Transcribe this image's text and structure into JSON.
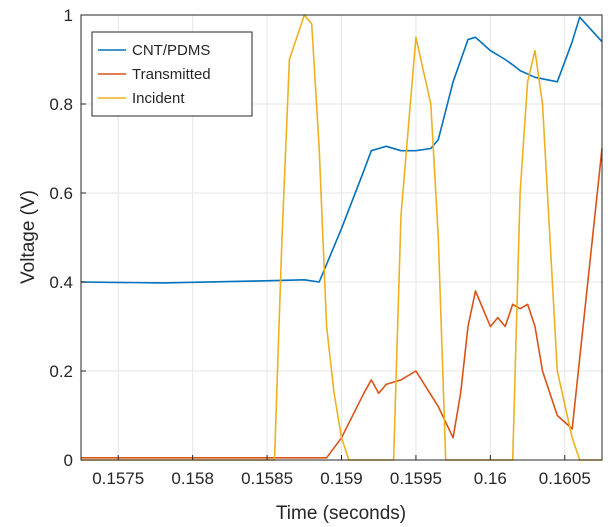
{
  "chart_data": {
    "type": "line",
    "title": "",
    "xlabel": "Time (seconds)",
    "ylabel": "Voltage (V)",
    "xlim": [
      0.15725,
      0.16075
    ],
    "ylim": [
      0,
      1
    ],
    "grid": true,
    "legend_position": "top-left",
    "x_ticks": [
      0.1575,
      0.158,
      0.1585,
      0.159,
      0.1595,
      0.16,
      0.1605
    ],
    "x_tick_labels": [
      "0.1575",
      "0.158",
      "0.1585",
      "0.159",
      "0.1595",
      "0.16",
      "0.1605"
    ],
    "y_ticks": [
      0,
      0.2,
      0.4,
      0.6,
      0.8,
      1
    ],
    "y_tick_labels": [
      "0",
      "0.2",
      "0.4",
      "0.6",
      "0.8",
      "1"
    ],
    "series": [
      {
        "name": "CNT/PDMS",
        "color": "#0072BD",
        "x": [
          0.15725,
          0.1578,
          0.1584,
          0.15875,
          0.15885,
          0.159,
          0.15915,
          0.1592,
          0.1593,
          0.1594,
          0.1595,
          0.1596,
          0.15965,
          0.15975,
          0.15985,
          0.1599,
          0.16,
          0.1601,
          0.16015,
          0.1602,
          0.1603,
          0.16045,
          0.16055,
          0.1606,
          0.16075
        ],
        "y": [
          0.4,
          0.398,
          0.402,
          0.405,
          0.4,
          0.52,
          0.65,
          0.695,
          0.705,
          0.695,
          0.695,
          0.7,
          0.72,
          0.85,
          0.945,
          0.95,
          0.92,
          0.9,
          0.888,
          0.875,
          0.86,
          0.85,
          0.94,
          0.995,
          0.94
        ]
      },
      {
        "name": "Transmitted",
        "color": "#D95319",
        "x": [
          0.15725,
          0.1589,
          0.159,
          0.15915,
          0.1592,
          0.15925,
          0.1593,
          0.1594,
          0.1595,
          0.15965,
          0.15975,
          0.1598,
          0.15985,
          0.1599,
          0.15995,
          0.16,
          0.16005,
          0.1601,
          0.16015,
          0.1602,
          0.16025,
          0.1603,
          0.16035,
          0.16045,
          0.16055,
          0.16075
        ],
        "y": [
          0.005,
          0.005,
          0.05,
          0.15,
          0.18,
          0.15,
          0.17,
          0.18,
          0.2,
          0.12,
          0.05,
          0.15,
          0.3,
          0.38,
          0.34,
          0.3,
          0.32,
          0.3,
          0.35,
          0.34,
          0.35,
          0.3,
          0.2,
          0.1,
          0.07,
          0.7
        ]
      },
      {
        "name": "Incident",
        "color": "#EDB120",
        "x": [
          0.15725,
          0.15855,
          0.1586,
          0.15865,
          0.15875,
          0.1588,
          0.15885,
          0.1589,
          0.15895,
          0.159,
          0.15905,
          0.15935,
          0.1594,
          0.1595,
          0.1596,
          0.15965,
          0.1597,
          0.16015,
          0.1602,
          0.16025,
          0.1603,
          0.16035,
          0.1604,
          0.16045,
          0.16055,
          0.1606,
          0.16065,
          0.16075
        ],
        "y": [
          0,
          0,
          0.5,
          0.9,
          1.0,
          0.98,
          0.7,
          0.3,
          0.15,
          0.05,
          0.0,
          0.0,
          0.55,
          0.95,
          0.8,
          0.5,
          0.0,
          0.0,
          0.6,
          0.85,
          0.92,
          0.8,
          0.5,
          0.2,
          0.05,
          0.0,
          0.0,
          0.0
        ]
      }
    ]
  }
}
